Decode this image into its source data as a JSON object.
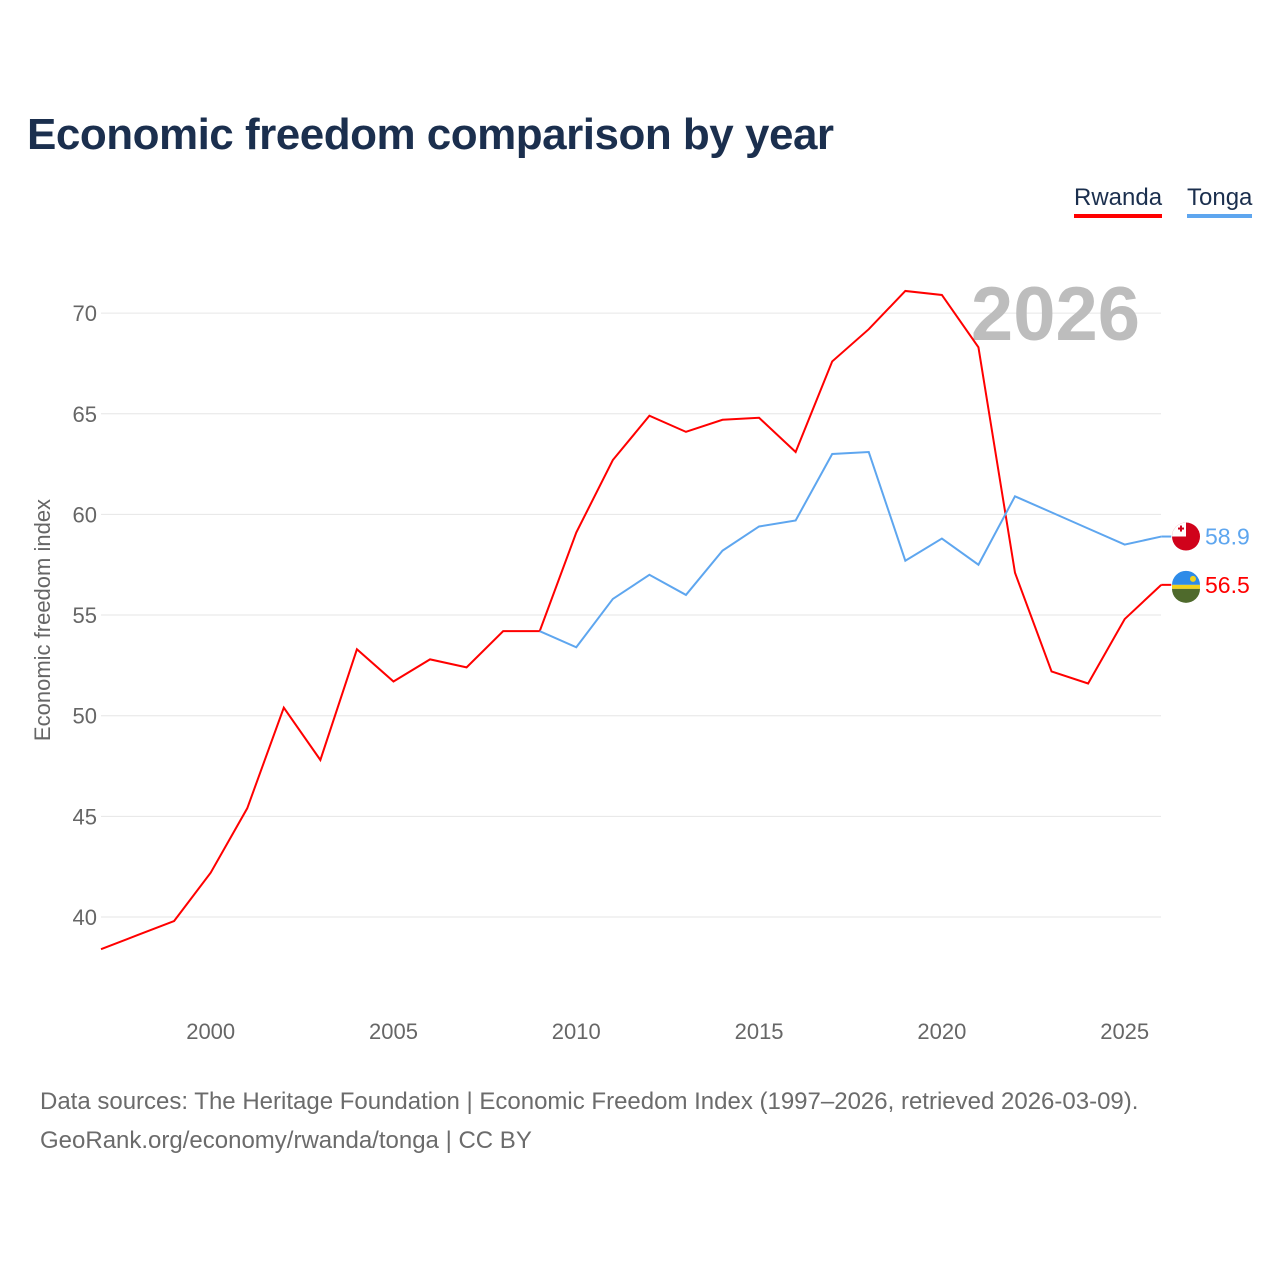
{
  "chart_data": {
    "type": "line",
    "title": "Economic freedom comparison by year",
    "xlabel": "",
    "ylabel": "Economic freedom index",
    "year_label": "2026",
    "xlim": [
      1997,
      2026
    ],
    "ylim": [
      36.5,
      73
    ],
    "x_ticks": [
      2000,
      2005,
      2010,
      2015,
      2020,
      2025
    ],
    "y_ticks": [
      40,
      45,
      50,
      55,
      60,
      65,
      70
    ],
    "grid": true,
    "legend_placement": "top-right",
    "series": [
      {
        "name": "Rwanda",
        "color": "#ff0000",
        "end_label": "56.5",
        "x": [
          1997,
          1998,
          1999,
          2000,
          2001,
          2002,
          2003,
          2004,
          2005,
          2006,
          2007,
          2008,
          2009,
          2010,
          2011,
          2012,
          2013,
          2014,
          2015,
          2016,
          2017,
          2018,
          2019,
          2020,
          2021,
          2022,
          2023,
          2024,
          2025,
          2026
        ],
        "values": [
          38.4,
          39.1,
          39.8,
          42.2,
          45.4,
          50.4,
          47.8,
          53.3,
          51.7,
          52.8,
          52.4,
          54.2,
          54.2,
          59.1,
          62.7,
          64.9,
          64.1,
          64.7,
          64.8,
          63.1,
          67.6,
          69.2,
          71.1,
          70.9,
          68.3,
          57.1,
          52.2,
          51.6,
          54.8,
          56.5
        ]
      },
      {
        "name": "Tonga",
        "color": "#5ea6ef",
        "end_label": "58.9",
        "x": [
          2009,
          2010,
          2011,
          2012,
          2013,
          2014,
          2015,
          2016,
          2017,
          2018,
          2019,
          2020,
          2021,
          2022,
          2023,
          2024,
          2025,
          2026
        ],
        "values": [
          54.2,
          53.4,
          55.8,
          57.0,
          56.0,
          58.2,
          59.4,
          59.7,
          63.0,
          63.1,
          57.7,
          58.8,
          57.5,
          60.9,
          60.1,
          59.3,
          58.5,
          58.9
        ]
      }
    ]
  },
  "footer": {
    "line1": "Data sources: The Heritage Foundation | Economic Freedom Index (1997–2026, retrieved 2026-03-09).",
    "line2": "GeoRank.org/economy/rwanda/tonga | CC BY"
  }
}
